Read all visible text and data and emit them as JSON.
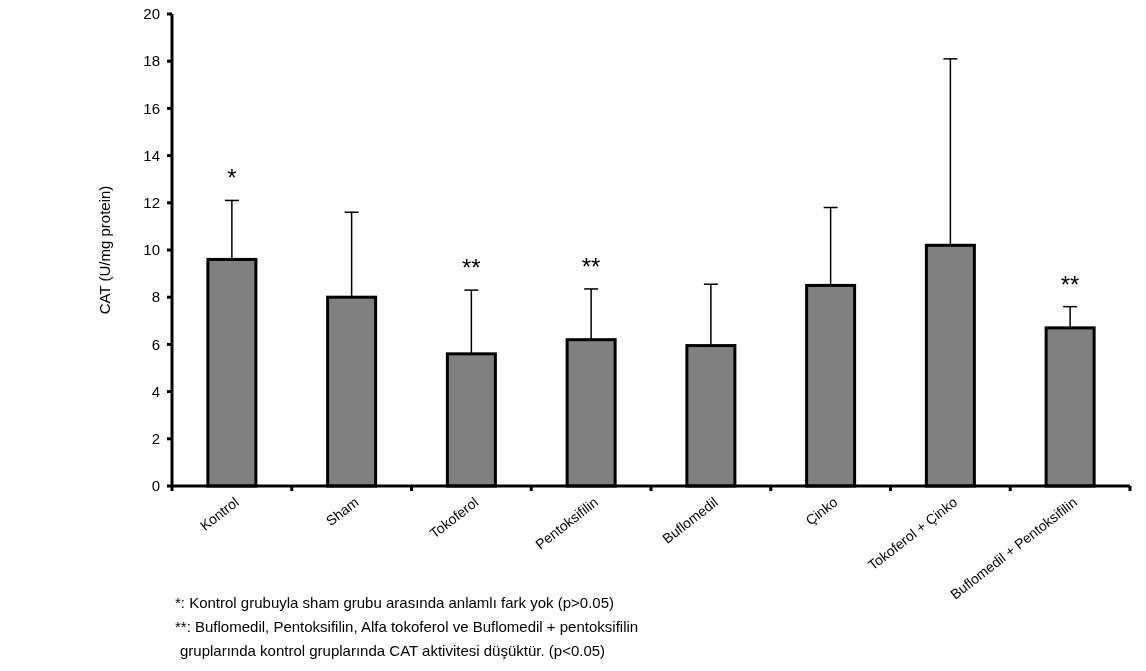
{
  "chart_data": {
    "type": "bar",
    "ylabel": "CAT (U/mg protein)",
    "categories": [
      "Kontrol",
      "Sham",
      "Tokoferol",
      "Pentoksifilin",
      "Buflomedil",
      "Çinko",
      "Tokoferol + Çinko",
      "Buflomedil + Pentoksifilin"
    ],
    "values": [
      9.6,
      8.0,
      5.6,
      6.2,
      5.95,
      8.5,
      10.2,
      6.7
    ],
    "errors": [
      [
        9.6,
        12.1
      ],
      [
        8.0,
        11.6
      ],
      [
        5.6,
        8.3
      ],
      [
        6.2,
        8.35
      ],
      [
        5.95,
        8.55
      ],
      [
        8.5,
        11.8
      ],
      [
        10.2,
        18.1
      ],
      [
        6.7,
        7.6
      ]
    ],
    "color": "#808080",
    "ylim": [
      0,
      20
    ],
    "yticks": [
      0,
      2,
      4,
      6,
      8,
      10,
      12,
      14,
      16,
      18,
      20
    ],
    "grid": false,
    "annotations": [
      {
        "text": "*",
        "x": "Kontrol",
        "y": 12.1
      },
      {
        "text": "**",
        "x": "Tokoferol",
        "y": 8.3
      },
      {
        "text": "**",
        "x": "Pentoksifilin",
        "y": 8.35
      },
      {
        "text": "**",
        "x": "Buflomedil + Pentoksifilin",
        "y": 7.6
      },
      "*: Kontrol grubuyla sham grubu arasında anlamlı fark yok (p>0.05)",
      "**: Buflomedil, Pentoksifilin, Alfa tokoferol ve Buflomedil + pentoksifilin",
      "gruplarında kontrol gruplarında CAT aktivitesi düşüktür. (p<0.05)"
    ]
  }
}
